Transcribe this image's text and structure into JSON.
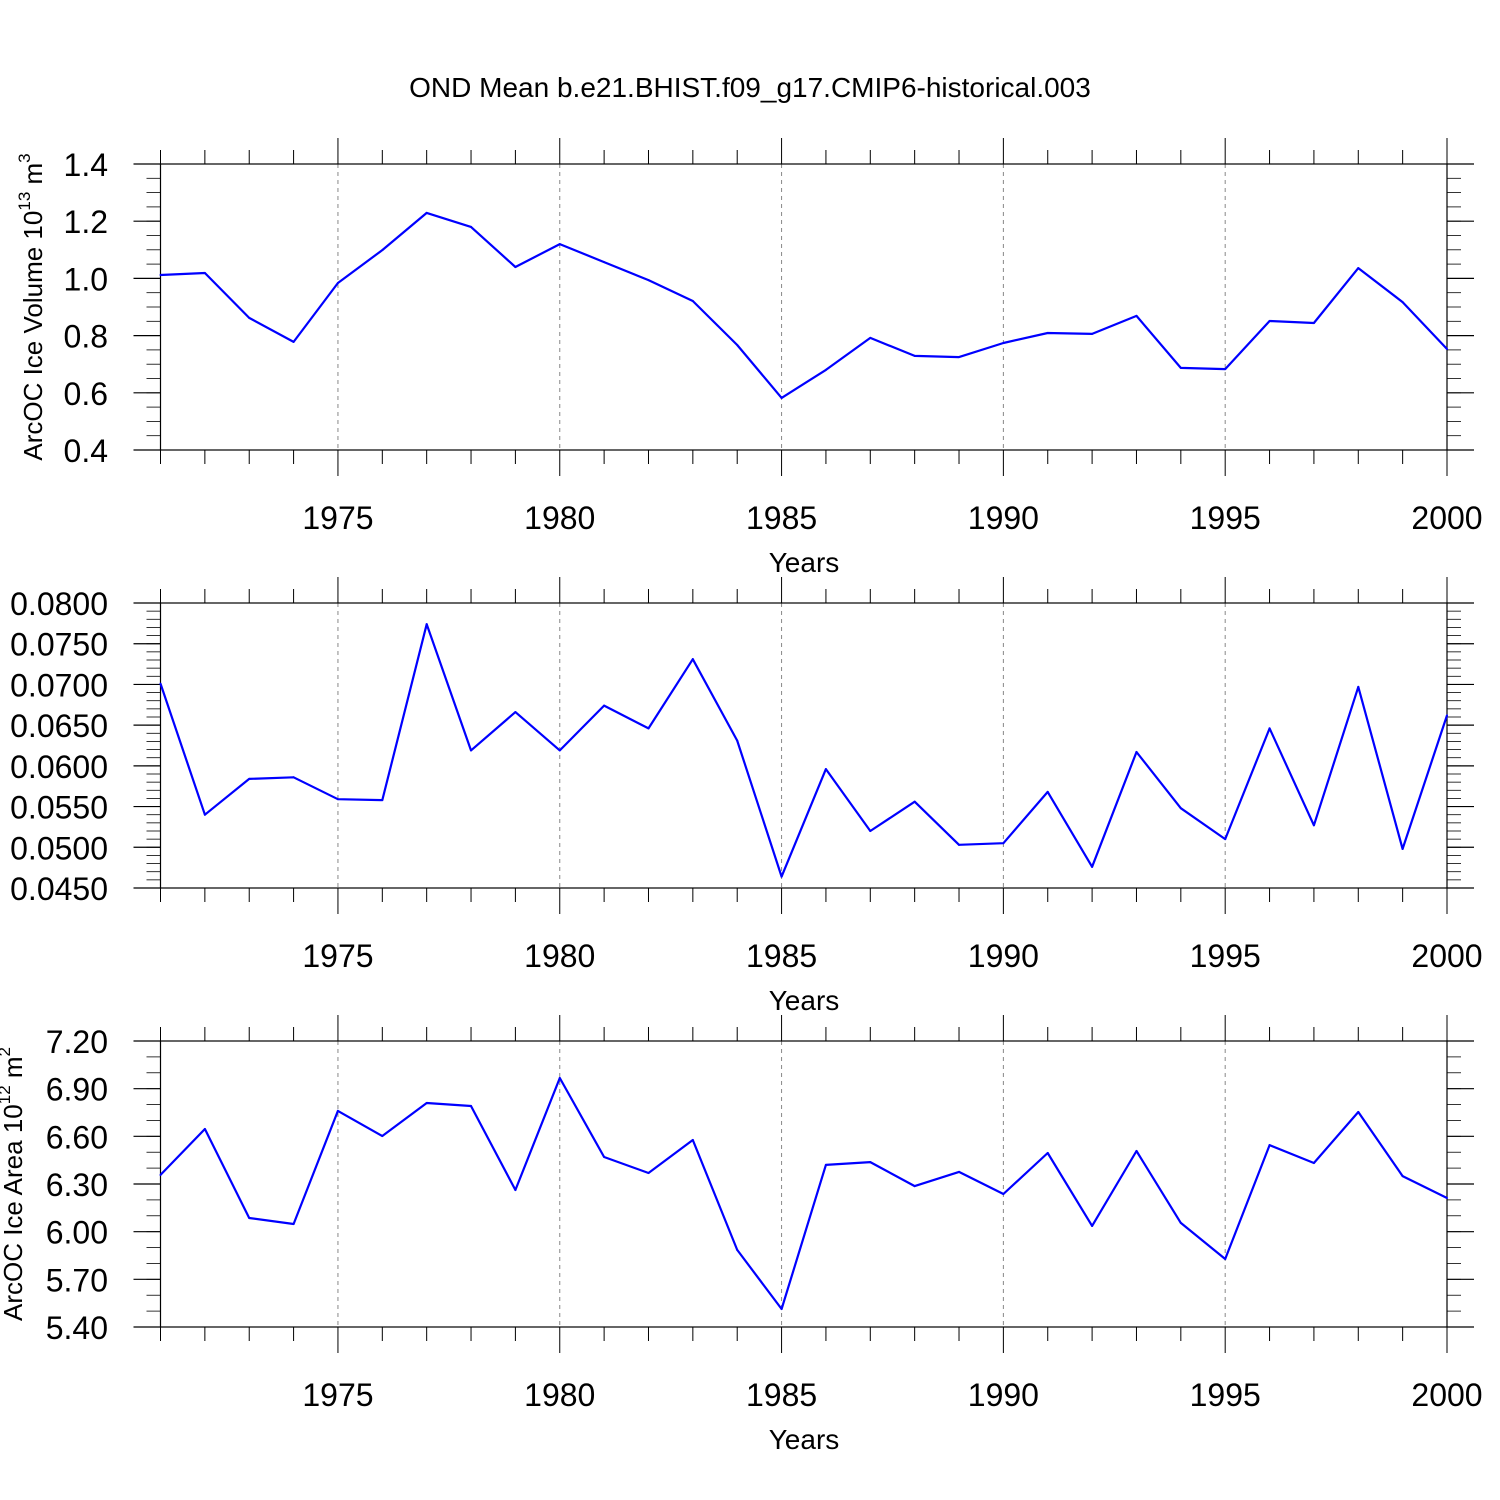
{
  "title": "OND Mean b.e21.BHIST.f09_g17.CMIP6-historical.003",
  "line_color": "#0000ff",
  "chart_data": [
    {
      "type": "line",
      "title": "OND Mean b.e21.BHIST.f09_g17.CMIP6-historical.003",
      "xlabel": "Years",
      "ylabel": "ArcOC Ice Volume 10",
      "ylabel_exp": "13",
      "ylabel_unit": " m",
      "ylabel_unit_exp": "3",
      "xlim": [
        1971,
        2000
      ],
      "ylim": [
        0.4,
        1.4
      ],
      "yticks": [
        "0.4",
        "0.6",
        "0.8",
        "1.0",
        "1.2",
        "1.4"
      ],
      "yminor_step": 0.05,
      "xticks": [
        "1975",
        "1980",
        "1985",
        "1990",
        "1995",
        "2000"
      ],
      "grid": "dashed vertical at major x ticks",
      "x": [
        1971,
        1972,
        1973,
        1974,
        1975,
        1976,
        1977,
        1978,
        1979,
        1980,
        1981,
        1982,
        1983,
        1984,
        1985,
        1986,
        1987,
        1988,
        1989,
        1990,
        1991,
        1992,
        1993,
        1994,
        1995,
        1996,
        1997,
        1998,
        1999,
        2000
      ],
      "values": [
        1.012,
        1.019,
        0.862,
        0.778,
        0.984,
        1.099,
        1.229,
        1.18,
        1.04,
        1.12,
        1.057,
        0.994,
        0.921,
        0.767,
        0.582,
        0.68,
        0.792,
        0.729,
        0.725,
        0.774,
        0.809,
        0.806,
        0.869,
        0.687,
        0.683,
        0.851,
        0.844,
        1.036,
        0.917,
        0.753
      ]
    },
    {
      "type": "line",
      "xlabel": "Years",
      "ylabel": "",
      "xlim": [
        1971,
        2000
      ],
      "ylim": [
        0.045,
        0.08
      ],
      "yticks": [
        "0.0450",
        "0.0500",
        "0.0550",
        "0.0600",
        "0.0650",
        "0.0700",
        "0.0750",
        "0.0800"
      ],
      "yminor_step": 0.001,
      "xticks": [
        "1975",
        "1980",
        "1985",
        "1990",
        "1995",
        "2000"
      ],
      "grid": "dashed vertical at major x ticks",
      "x": [
        1971,
        1972,
        1973,
        1974,
        1975,
        1976,
        1977,
        1978,
        1979,
        1980,
        1981,
        1982,
        1983,
        1984,
        1985,
        1986,
        1987,
        1988,
        1989,
        1990,
        1991,
        1992,
        1993,
        1994,
        1995,
        1996,
        1997,
        1998,
        1999,
        2000
      ],
      "values": [
        0.0701,
        0.054,
        0.0584,
        0.0586,
        0.0559,
        0.0558,
        0.0774,
        0.0619,
        0.0666,
        0.0619,
        0.0674,
        0.0646,
        0.0731,
        0.0631,
        0.0464,
        0.0596,
        0.052,
        0.0556,
        0.0503,
        0.0505,
        0.0568,
        0.0476,
        0.0617,
        0.0548,
        0.051,
        0.0646,
        0.0527,
        0.0697,
        0.0498,
        0.0662
      ]
    },
    {
      "type": "line",
      "xlabel": "Years",
      "ylabel": "ArcOC Ice Area 10",
      "ylabel_exp": "12",
      "ylabel_unit": " m",
      "ylabel_unit_exp": "2",
      "xlim": [
        1971,
        2000
      ],
      "ylim": [
        5.4,
        7.2
      ],
      "yticks": [
        "5.40",
        "5.70",
        "6.00",
        "6.30",
        "6.60",
        "6.90",
        "7.20"
      ],
      "yminor_step": 0.1,
      "xticks": [
        "1975",
        "1980",
        "1985",
        "1990",
        "1995",
        "2000"
      ],
      "grid": "dashed vertical at major x ticks",
      "x": [
        1971,
        1972,
        1973,
        1974,
        1975,
        1976,
        1977,
        1978,
        1979,
        1980,
        1981,
        1982,
        1983,
        1984,
        1985,
        1986,
        1987,
        1988,
        1989,
        1990,
        1991,
        1992,
        1993,
        1994,
        1995,
        1996,
        1997,
        1998,
        1999,
        2000
      ],
      "values": [
        6.357,
        6.646,
        6.086,
        6.048,
        6.76,
        6.602,
        6.81,
        6.791,
        6.262,
        6.967,
        6.47,
        6.369,
        6.577,
        5.885,
        5.513,
        6.42,
        6.438,
        6.287,
        6.376,
        6.237,
        6.495,
        6.036,
        6.508,
        6.055,
        5.828,
        6.545,
        6.432,
        6.753,
        6.35,
        6.212
      ]
    }
  ]
}
